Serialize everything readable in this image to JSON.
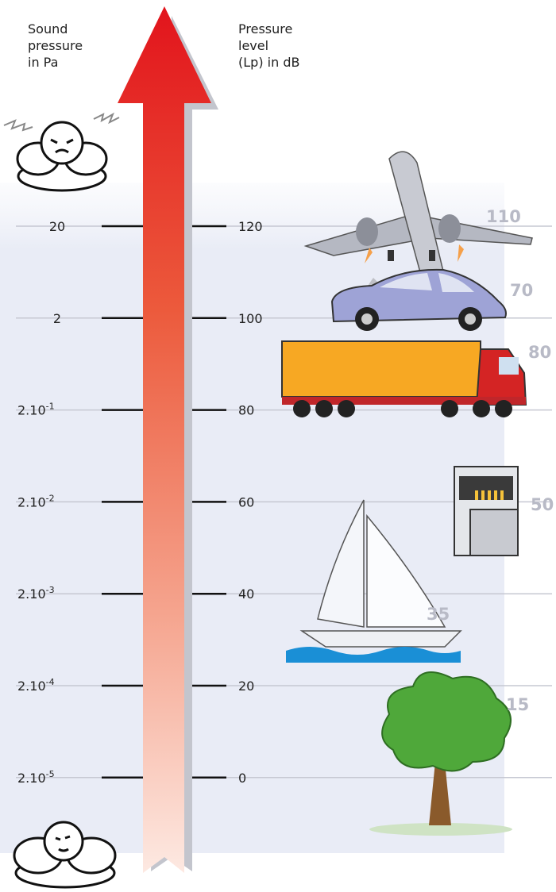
{
  "header": {
    "pa_lines": [
      "Sound",
      "pressure",
      "in Pa"
    ],
    "db_lines": [
      "Pressure",
      "level",
      "(Lp) in dB"
    ]
  },
  "levels": [
    {
      "pa": {
        "base": "20"
      },
      "db": "120"
    },
    {
      "pa": {
        "base": "2"
      },
      "db": "100"
    },
    {
      "pa": {
        "base": "2.10",
        "exp": "-1"
      },
      "db": "80"
    },
    {
      "pa": {
        "base": "2.10",
        "exp": "-2"
      },
      "db": "60"
    },
    {
      "pa": {
        "base": "2.10",
        "exp": "-3"
      },
      "db": "40"
    },
    {
      "pa": {
        "base": "2.10",
        "exp": "-4"
      },
      "db": "20"
    },
    {
      "pa": {
        "base": "2.10",
        "exp": "-5"
      },
      "db": "0"
    }
  ],
  "sources": [
    {
      "name": "plane",
      "label": "110"
    },
    {
      "name": "truck",
      "label": "80"
    },
    {
      "name": "car",
      "label": "70"
    },
    {
      "name": "dishwasher",
      "label": "50"
    },
    {
      "name": "sailboat",
      "label": "35"
    },
    {
      "name": "tree",
      "label": "15"
    }
  ]
}
